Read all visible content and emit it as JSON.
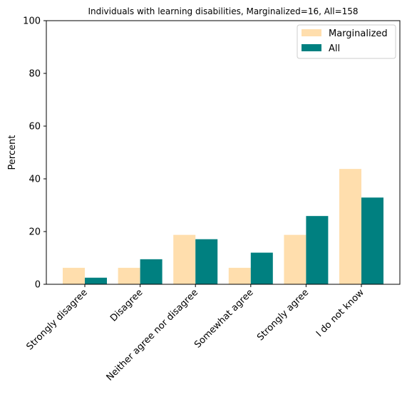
{
  "chart_data": {
    "type": "bar",
    "title": "Individuals with learning disabilities, Marginalized=16, All=158",
    "xlabel": "",
    "ylabel": "Percent",
    "ylim": [
      0,
      100
    ],
    "yticks": [
      0,
      20,
      40,
      60,
      80,
      100
    ],
    "grid": false,
    "legend_position": "top-right",
    "categories": [
      "Strongly disagree",
      "Disagree",
      "Neither agree nor disagree",
      "Somewhat agree",
      "Strongly agree",
      "I do not know"
    ],
    "series": [
      {
        "name": "Marginalized",
        "color": "#ffdead",
        "values": [
          6.25,
          6.25,
          18.75,
          6.25,
          18.75,
          43.75
        ]
      },
      {
        "name": "All",
        "color": "#008080",
        "values": [
          2.5,
          9.5,
          17.1,
          12.0,
          25.9,
          32.9
        ]
      }
    ]
  }
}
